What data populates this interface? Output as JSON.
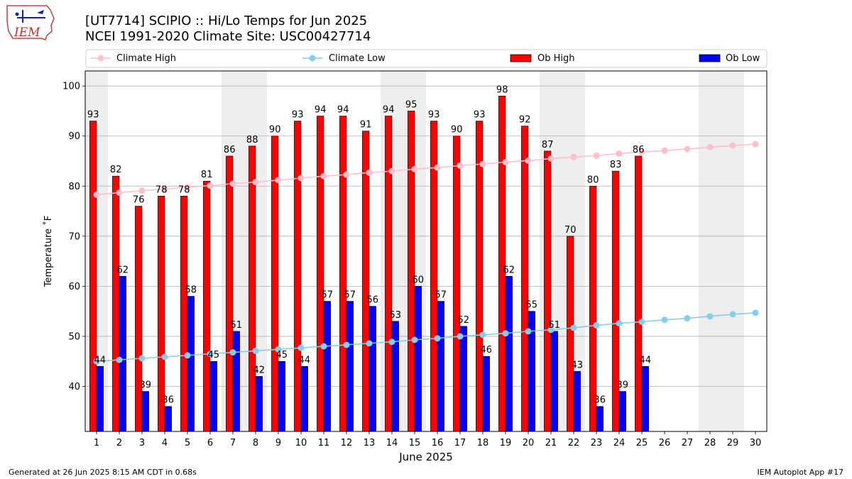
{
  "header": {
    "logo_text": "IEM",
    "title_line1": "[UT7714] SCIPIO :: Hi/Lo Temps for Jun 2025",
    "title_line2": "NCEI 1991-2020 Climate Site: USC00427714"
  },
  "footer": {
    "left": "Generated at 26 Jun 2025 8:15 AM CDT in 0.68s",
    "right": "IEM Autoplot App #17"
  },
  "colors": {
    "ob_high": "#ff0000",
    "ob_low": "#0000ff",
    "climate_high": "#ffc0cb",
    "climate_low": "#87ceeb",
    "weekend_shade": "#eeeeee",
    "grid": "#b0b0b0"
  },
  "chart_data": {
    "type": "bar",
    "xlabel": "June 2025",
    "ylabel": "Temperature ˚F",
    "ylim": [
      31,
      103
    ],
    "xlim": [
      0.5,
      30.5
    ],
    "yticks": [
      40,
      50,
      60,
      70,
      80,
      90,
      100
    ],
    "grid": "horizontal",
    "legend_position": "top",
    "days": [
      1,
      2,
      3,
      4,
      5,
      6,
      7,
      8,
      9,
      10,
      11,
      12,
      13,
      14,
      15,
      16,
      17,
      18,
      19,
      20,
      21,
      22,
      23,
      24,
      25,
      26,
      27,
      28,
      29,
      30
    ],
    "shaded_days": [
      1,
      7,
      8,
      14,
      15,
      21,
      22,
      28,
      29
    ],
    "series": [
      {
        "name": "Climate High",
        "type": "line",
        "values": [
          78.3,
          78.7,
          79.1,
          79.4,
          79.8,
          80.1,
          80.5,
          80.8,
          81.2,
          81.6,
          82.0,
          82.3,
          82.7,
          83.0,
          83.4,
          83.7,
          84.1,
          84.4,
          84.8,
          85.1,
          85.5,
          85.8,
          86.1,
          86.5,
          86.8,
          87.1,
          87.4,
          87.8,
          88.1,
          88.4
        ]
      },
      {
        "name": "Climate Low",
        "type": "line",
        "values": [
          45.0,
          45.3,
          45.6,
          45.9,
          46.2,
          46.5,
          46.8,
          47.1,
          47.4,
          47.7,
          48.0,
          48.3,
          48.6,
          48.9,
          49.3,
          49.6,
          50.0,
          50.3,
          50.6,
          51.0,
          51.3,
          51.7,
          52.2,
          52.6,
          52.9,
          53.3,
          53.6,
          54.0,
          54.4,
          54.7
        ]
      },
      {
        "name": "Ob High",
        "type": "bar",
        "values": [
          93,
          82,
          76,
          78,
          78,
          81,
          86,
          88,
          90,
          93,
          94,
          94,
          91,
          94,
          95,
          93,
          90,
          93,
          98,
          92,
          87,
          70,
          80,
          83,
          86
        ]
      },
      {
        "name": "Ob Low",
        "type": "bar",
        "values": [
          44,
          62,
          39,
          36,
          58,
          45,
          51,
          42,
          45,
          44,
          57,
          57,
          56,
          53,
          60,
          57,
          52,
          46,
          62,
          55,
          51,
          43,
          36,
          39,
          44
        ]
      }
    ]
  }
}
